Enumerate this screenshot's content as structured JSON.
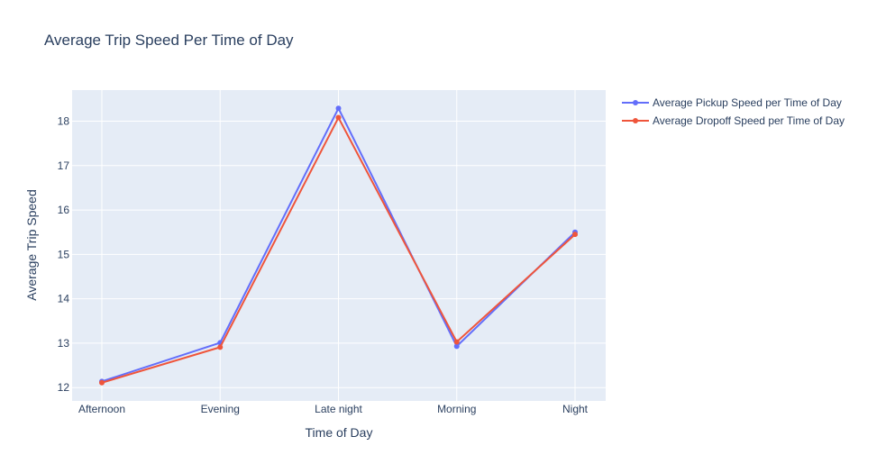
{
  "chart_data": {
    "type": "line",
    "title": "Average Trip Speed Per Time of Day",
    "xlabel": "Time of Day",
    "ylabel": "Average Trip Speed",
    "categories": [
      "Afternoon",
      "Evening",
      "Late night",
      "Morning",
      "Night"
    ],
    "yticks": [
      12,
      13,
      14,
      15,
      16,
      17,
      18
    ],
    "ylim": [
      11.7,
      18.7
    ],
    "grid": true,
    "legend_position": "top-right",
    "series": [
      {
        "name": "Average Pickup Speed per Time of Day",
        "color": "#636efa",
        "values": [
          12.14,
          13.01,
          18.29,
          12.93,
          15.5
        ]
      },
      {
        "name": "Average Dropoff Speed per Time of Day",
        "color": "#ef553b",
        "values": [
          12.11,
          12.91,
          18.08,
          13.03,
          15.45
        ]
      }
    ],
    "plot_background": "#e5ecf6",
    "gridline_color": "#ffffff",
    "text_color": "#2a3f5f"
  }
}
